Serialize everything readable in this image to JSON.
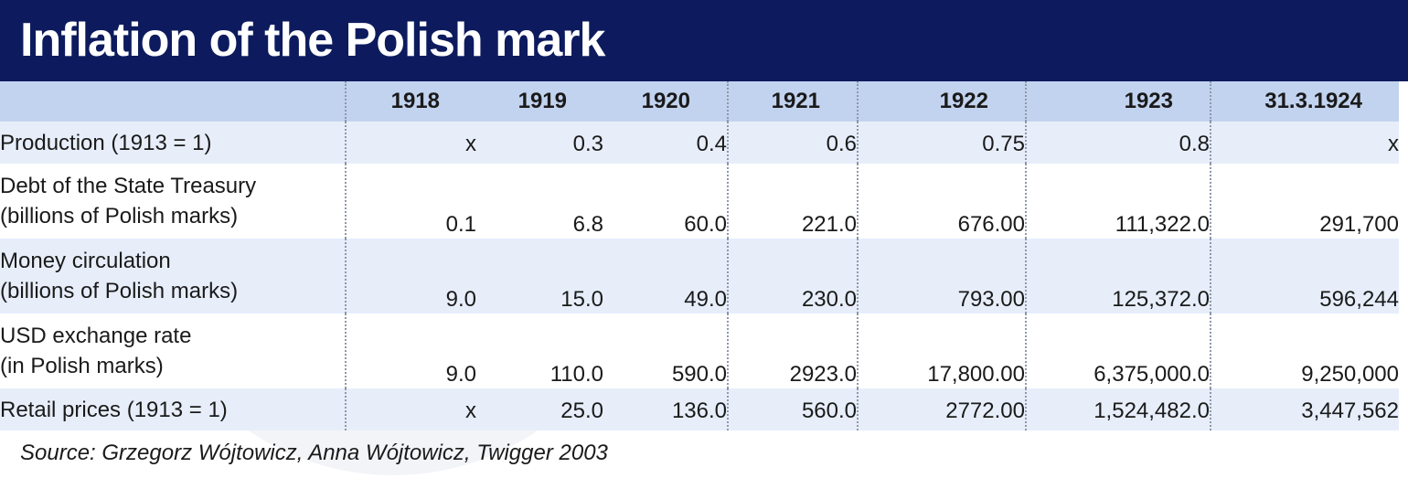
{
  "title": "Inflation of the Polish mark",
  "source": "Source: Grzegorz Wójtowicz, Anna Wójtowicz, Twigger 2003",
  "colors": {
    "title_bar": "#0d1b5e",
    "header_row": "#c2d3ef",
    "shaded_row": "#e7eefa"
  },
  "chart_data": {
    "type": "table",
    "title": "Inflation of the Polish mark",
    "columns": [
      "1918",
      "1919",
      "1920",
      "1921",
      "1922",
      "1923",
      "31.3.1924"
    ],
    "rows": [
      {
        "label_lines": [
          "Production (1913 = 1)"
        ],
        "values": [
          "x",
          "0.3",
          "0.4",
          "0.6",
          "0.75",
          "0.8",
          "x"
        ]
      },
      {
        "label_lines": [
          "Debt of the State Treasury",
          "(billions of Polish marks)"
        ],
        "values": [
          "0.1",
          "6.8",
          "60.0",
          "221.0",
          "676.00",
          "111,322.0",
          "291,700"
        ]
      },
      {
        "label_lines": [
          "Money circulation",
          "(billions of Polish marks)"
        ],
        "values": [
          "9.0",
          "15.0",
          "49.0",
          "230.0",
          "793.00",
          "125,372.0",
          "596,244"
        ]
      },
      {
        "label_lines": [
          "USD exchange rate",
          "(in Polish marks)"
        ],
        "values": [
          "9.0",
          "110.0",
          "590.0",
          "2923.0",
          "17,800.00",
          "6,375,000.0",
          "9,250,000"
        ]
      },
      {
        "label_lines": [
          "Retail prices (1913 = 1)"
        ],
        "values": [
          "x",
          "25.0",
          "136.0",
          "560.0",
          "2772.00",
          "1,524,482.0",
          "3,447,562"
        ]
      }
    ]
  }
}
